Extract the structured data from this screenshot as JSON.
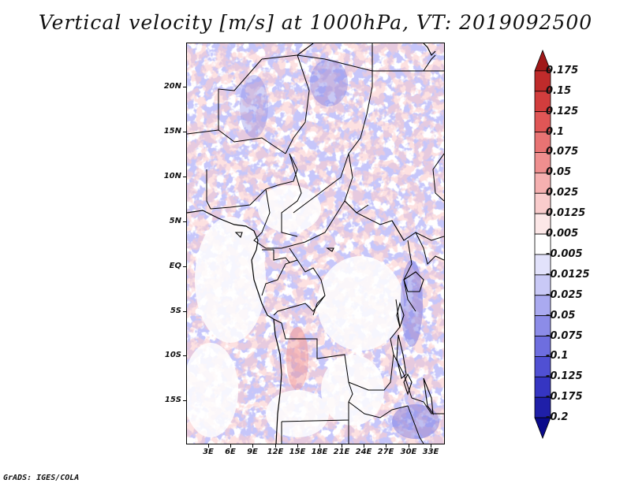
{
  "title": "Vertical velocity [m/s] at 1000hPa, VT: 2019092500",
  "credit": "GrADS: IGES/COLA",
  "map": {
    "lat_labels": [
      "20N",
      "15N",
      "10N",
      "5N",
      "EQ",
      "5S",
      "10S",
      "15S"
    ],
    "lon_labels": [
      "3E",
      "6E",
      "9E",
      "12E",
      "15E",
      "18E",
      "21E",
      "24E",
      "27E",
      "30E",
      "33E"
    ]
  },
  "colorbar": {
    "levels": [
      "0.175",
      "0.15",
      "0.125",
      "0.1",
      "0.075",
      "0.05",
      "0.025",
      "0.0125",
      "0.005",
      "-0.005",
      "-0.0125",
      "-0.025",
      "-0.05",
      "-0.075",
      "-0.1",
      "-0.125",
      "-0.175",
      "-0.2"
    ],
    "colors": [
      "#a01818",
      "#bf2b2b",
      "#d23d3d",
      "#e05656",
      "#e87373",
      "#ef8f8f",
      "#f5b0b0",
      "#f9cccc",
      "#fce7e7",
      "#ffffff",
      "#e2e2fb",
      "#c9c9f6",
      "#aaaaf0",
      "#8c8ce8",
      "#6e6edf",
      "#5050d3",
      "#3535c2",
      "#1f1fa8",
      "#0a0a8a"
    ]
  }
}
